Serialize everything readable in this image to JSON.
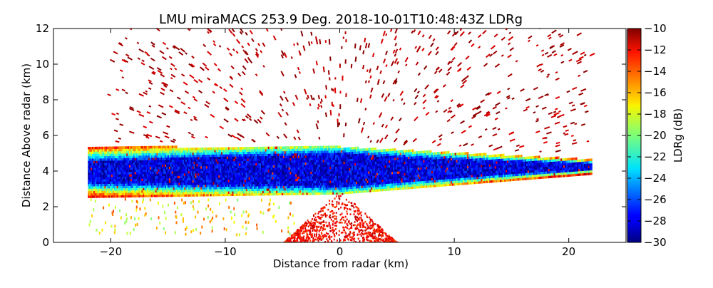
{
  "chart_data": {
    "type": "heatmap",
    "title": "LMU miraMACS 253.9 Deg. 2018-10-01T10:48:43Z  LDRg",
    "xlabel": "Distance from radar (km)",
    "ylabel": "Distance Above radar  (km)",
    "xlim": [
      -25,
      25
    ],
    "ylim": [
      0,
      12
    ],
    "x_ticks": [
      -20,
      -10,
      0,
      10,
      20
    ],
    "x_tick_labels": [
      "−20",
      "−10",
      "0",
      "10",
      "20"
    ],
    "y_ticks": [
      0,
      2,
      4,
      6,
      8,
      10,
      12
    ],
    "y_tick_labels": [
      "0",
      "2",
      "4",
      "6",
      "8",
      "10",
      "12"
    ],
    "colorbar": {
      "label": "LDRg (dB)",
      "vmin": -30,
      "vmax": -10,
      "colormap": "jet",
      "ticks": [
        -10,
        -12,
        -14,
        -16,
        -18,
        -20,
        -22,
        -24,
        -26,
        -28,
        -30
      ],
      "tick_labels": [
        "−10",
        "−12",
        "−14",
        "−16",
        "−18",
        "−20",
        "−22",
        "−24",
        "−26",
        "−28",
        "−30"
      ]
    },
    "features": [
      {
        "name": "main cloud layer",
        "x_range": [
          -22,
          22
        ],
        "base_km_at_left": 2.5,
        "base_km_at_center": 2.7,
        "base_km_at_right": 3.8,
        "top_km_at_left": 5.3,
        "top_km_at_center": 5.3,
        "top_km_at_right": 4.6,
        "core_ldr_db": -28,
        "edge_ldr_db": -16
      },
      {
        "name": "near-radar clutter",
        "x_range": [
          -5,
          5
        ],
        "y_range": [
          0,
          3
        ],
        "ldr_db": -11
      },
      {
        "name": "sparse high-altitude returns",
        "x_range": [
          -20,
          22
        ],
        "y_range": [
          5,
          12
        ],
        "ldr_db": -10
      },
      {
        "name": "lower-left scattered returns",
        "x_range": [
          -22,
          -4
        ],
        "y_range": [
          0.5,
          2.5
        ],
        "ldr_db": -14
      }
    ]
  }
}
